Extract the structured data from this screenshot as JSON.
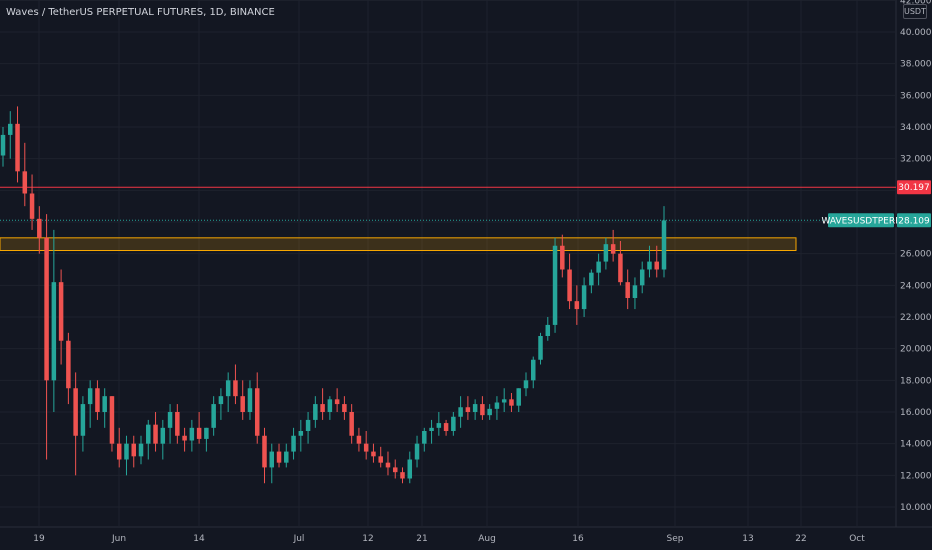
{
  "header": {
    "title": "Waves / TetherUS PERPETUAL FUTURES, 1D, BINANCE"
  },
  "unit": "USDT",
  "colors": {
    "bg": "#131722",
    "grid": "#1e222d",
    "up": "#26a69a",
    "down": "#ef5350",
    "resistance": "#f23645",
    "zone": "#f7a600",
    "axis_text": "#b2b5be"
  },
  "chart_data": {
    "type": "candlestick",
    "title": "Waves / TetherUS PERPETUAL FUTURES, 1D, BINANCE",
    "symbol": "WAVESUSDTPERP",
    "unit": "USDT",
    "ylim": [
      9,
      42
    ],
    "y_ticks": [
      "10.000",
      "12.000",
      "14.000",
      "16.000",
      "18.000",
      "20.000",
      "22.000",
      "24.000",
      "26.000",
      "28.000",
      "30.000",
      "32.000",
      "34.000",
      "36.000",
      "38.000",
      "40.000",
      "42.000"
    ],
    "x_ticks": [
      "19",
      "Jun",
      "14",
      "Jul",
      "12",
      "21",
      "Aug",
      "16",
      "Sep",
      "13",
      "22",
      "Oct"
    ],
    "last_price": "28.109",
    "resistance_level": "30.197",
    "zone": [
      26.2,
      27.0
    ],
    "candles": [
      [
        32.2,
        34.0,
        31.5,
        33.5
      ],
      [
        33.5,
        35.0,
        32.0,
        34.2
      ],
      [
        34.2,
        35.3,
        30.5,
        31.2
      ],
      [
        31.2,
        33.0,
        29.0,
        29.8
      ],
      [
        29.8,
        31.0,
        27.5,
        28.2
      ],
      [
        28.2,
        29.0,
        26.0,
        27.0
      ],
      [
        27.0,
        28.5,
        13.0,
        18.0
      ],
      [
        18.0,
        27.5,
        16.0,
        24.2
      ],
      [
        24.2,
        25.0,
        19.0,
        20.5
      ],
      [
        20.5,
        21.0,
        16.5,
        17.5
      ],
      [
        17.5,
        18.5,
        12.0,
        14.5
      ],
      [
        14.5,
        17.0,
        13.5,
        16.5
      ],
      [
        16.5,
        18.0,
        15.0,
        17.5
      ],
      [
        17.5,
        18.0,
        15.5,
        16.0
      ],
      [
        16.0,
        17.5,
        15.0,
        17.0
      ],
      [
        17.0,
        17.0,
        13.5,
        14.0
      ],
      [
        14.0,
        15.0,
        12.5,
        13.0
      ],
      [
        13.0,
        14.5,
        12.0,
        14.0
      ],
      [
        14.0,
        14.5,
        12.5,
        13.2
      ],
      [
        13.2,
        14.5,
        12.7,
        14.0
      ],
      [
        14.0,
        15.5,
        13.0,
        15.2
      ],
      [
        15.2,
        16.0,
        13.5,
        14.0
      ],
      [
        14.0,
        15.5,
        13.0,
        15.0
      ],
      [
        15.0,
        16.5,
        14.0,
        16.0
      ],
      [
        16.0,
        16.5,
        14.0,
        14.5
      ],
      [
        14.5,
        15.0,
        13.5,
        14.2
      ],
      [
        14.2,
        15.5,
        13.5,
        15.0
      ],
      [
        15.0,
        16.0,
        14.0,
        14.3
      ],
      [
        14.3,
        15.0,
        13.5,
        15.0
      ],
      [
        15.0,
        17.0,
        14.5,
        16.5
      ],
      [
        16.5,
        17.5,
        15.5,
        17.0
      ],
      [
        17.0,
        18.5,
        16.0,
        18.0
      ],
      [
        18.0,
        19.0,
        16.5,
        17.0
      ],
      [
        17.0,
        18.0,
        15.5,
        16.0
      ],
      [
        16.0,
        18.0,
        15.5,
        17.5
      ],
      [
        17.5,
        18.5,
        14.0,
        14.5
      ],
      [
        14.5,
        15.0,
        11.5,
        12.5
      ],
      [
        12.5,
        14.0,
        11.5,
        13.5
      ],
      [
        13.5,
        14.0,
        12.5,
        12.8
      ],
      [
        12.8,
        14.0,
        12.5,
        13.5
      ],
      [
        13.5,
        15.0,
        13.0,
        14.5
      ],
      [
        14.5,
        15.5,
        13.5,
        14.8
      ],
      [
        14.8,
        16.0,
        14.0,
        15.5
      ],
      [
        15.5,
        17.0,
        15.0,
        16.5
      ],
      [
        16.5,
        17.5,
        15.5,
        16.0
      ],
      [
        16.0,
        17.0,
        15.5,
        16.8
      ],
      [
        16.8,
        17.5,
        16.0,
        16.5
      ],
      [
        16.5,
        17.0,
        15.5,
        16.0
      ],
      [
        16.0,
        16.5,
        14.0,
        14.5
      ],
      [
        14.5,
        15.0,
        13.5,
        14.0
      ],
      [
        14.0,
        14.8,
        13.0,
        13.5
      ],
      [
        13.5,
        14.0,
        12.8,
        13.2
      ],
      [
        13.2,
        13.8,
        12.5,
        12.8
      ],
      [
        12.8,
        13.5,
        12.0,
        12.5
      ],
      [
        12.5,
        13.0,
        11.8,
        12.2
      ],
      [
        12.2,
        12.5,
        11.5,
        11.8
      ],
      [
        11.8,
        13.5,
        11.5,
        13.0
      ],
      [
        13.0,
        14.5,
        12.5,
        14.0
      ],
      [
        14.0,
        15.0,
        13.5,
        14.8
      ],
      [
        14.8,
        15.5,
        14.0,
        15.0
      ],
      [
        15.0,
        16.0,
        14.5,
        15.3
      ],
      [
        15.3,
        15.5,
        14.5,
        14.8
      ],
      [
        14.8,
        16.0,
        14.5,
        15.7
      ],
      [
        15.7,
        17.0,
        15.0,
        16.3
      ],
      [
        16.3,
        17.0,
        15.5,
        16.0
      ],
      [
        16.0,
        16.8,
        15.5,
        16.5
      ],
      [
        16.5,
        17.0,
        15.5,
        15.8
      ],
      [
        15.8,
        16.5,
        15.5,
        16.2
      ],
      [
        16.2,
        17.0,
        15.5,
        16.6
      ],
      [
        16.6,
        17.5,
        16.0,
        16.8
      ],
      [
        16.8,
        17.2,
        16.0,
        16.4
      ],
      [
        16.4,
        17.5,
        16.0,
        17.5
      ],
      [
        17.5,
        18.5,
        17.0,
        18.0
      ],
      [
        18.0,
        19.5,
        17.5,
        19.3
      ],
      [
        19.3,
        21.0,
        19.0,
        20.8
      ],
      [
        20.8,
        22.0,
        20.5,
        21.5
      ],
      [
        21.5,
        27.0,
        21.0,
        26.5
      ],
      [
        26.5,
        27.2,
        24.5,
        25.0
      ],
      [
        25.0,
        26.0,
        22.5,
        23.0
      ],
      [
        23.0,
        24.0,
        21.5,
        22.5
      ],
      [
        22.5,
        24.5,
        22.0,
        24.0
      ],
      [
        24.0,
        25.0,
        23.5,
        24.8
      ],
      [
        24.8,
        26.0,
        24.0,
        25.5
      ],
      [
        25.5,
        27.0,
        25.0,
        26.6
      ],
      [
        26.6,
        27.5,
        25.5,
        26.0
      ],
      [
        26.0,
        26.8,
        24.0,
        24.2
      ],
      [
        24.2,
        25.0,
        22.5,
        23.2
      ],
      [
        23.2,
        24.5,
        22.5,
        24.0
      ],
      [
        24.0,
        25.5,
        23.5,
        25.0
      ],
      [
        25.0,
        26.5,
        24.5,
        25.5
      ],
      [
        25.5,
        26.5,
        24.5,
        25.0
      ],
      [
        25.0,
        29.0,
        24.5,
        28.1
      ]
    ]
  }
}
